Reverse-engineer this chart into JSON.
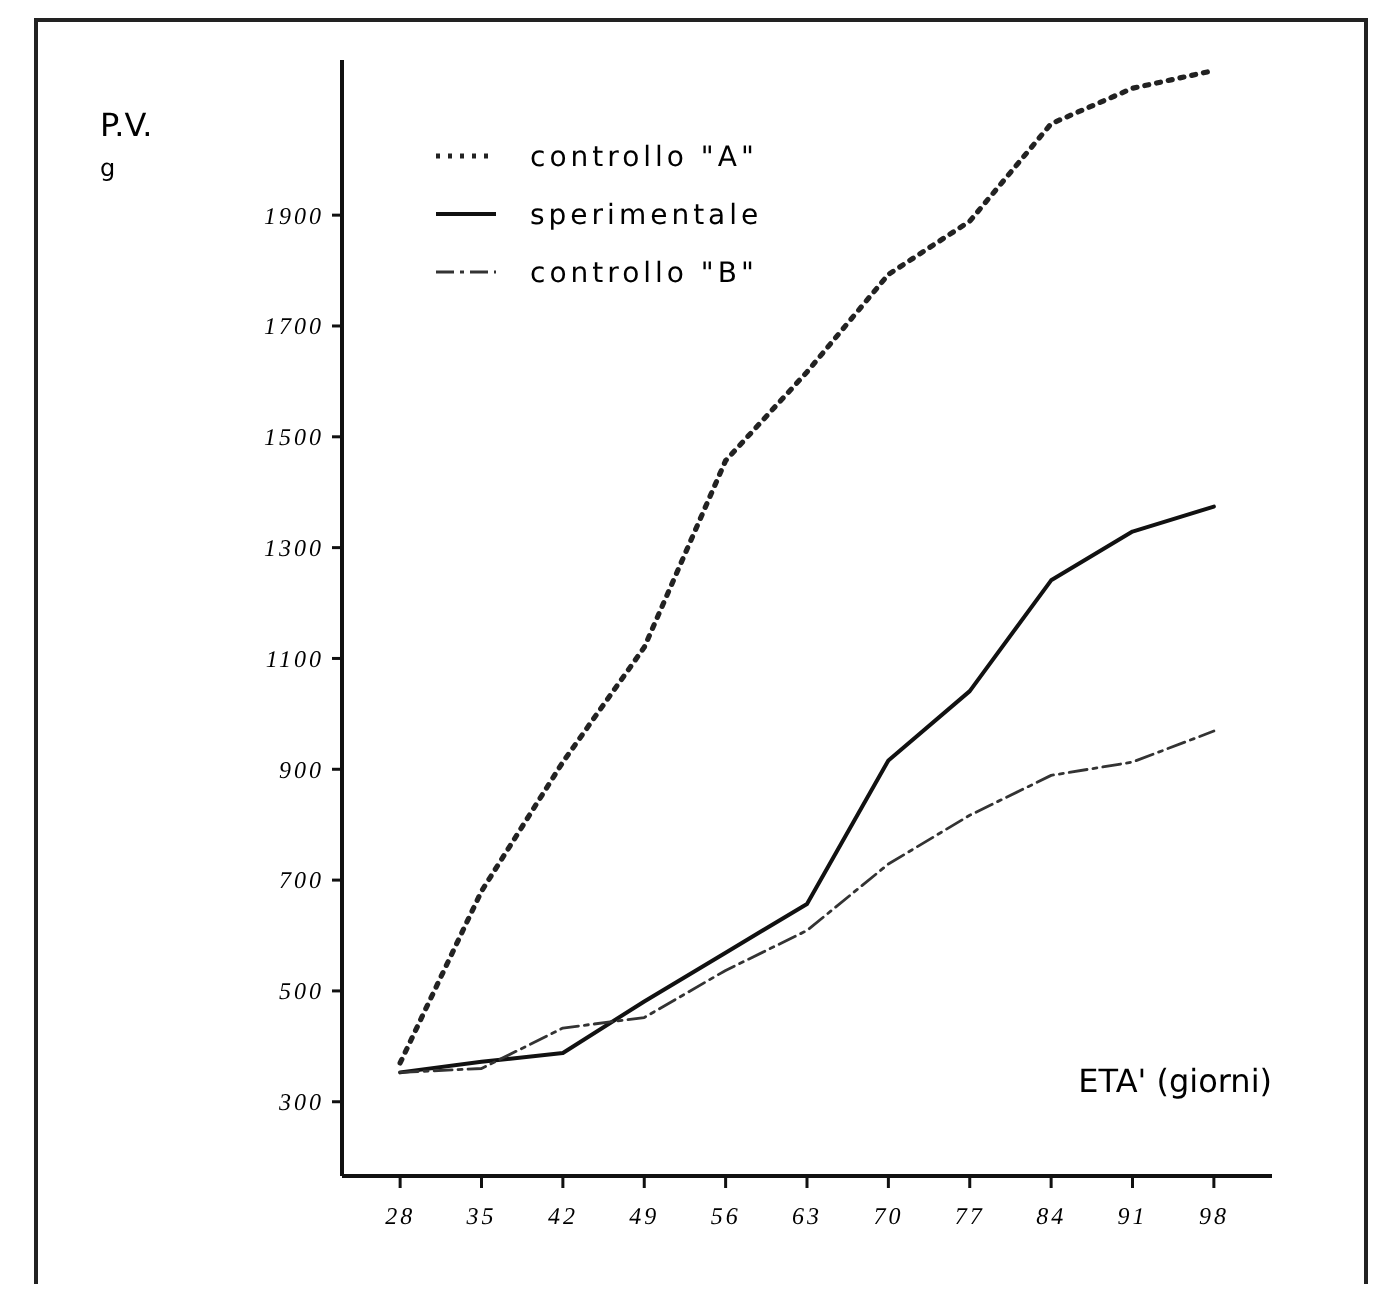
{
  "chart_data": {
    "type": "line",
    "ylabel": "P.V.\ng",
    "xlabel": "ETA' (giorni)",
    "x": [
      28,
      35,
      42,
      49,
      56,
      63,
      70,
      77,
      84,
      91,
      98
    ],
    "xlim": [
      23,
      103
    ],
    "xticks": [
      28,
      35,
      42,
      49,
      56,
      63,
      70,
      77,
      84,
      91,
      98
    ],
    "ylim": [
      166,
      2180
    ],
    "yticks": [
      300,
      500,
      700,
      900,
      1100,
      1300,
      1500,
      1700,
      1900
    ],
    "grid": false,
    "legend": "top left",
    "series": [
      {
        "name": "controllo \"A\"",
        "color": "#222222",
        "line_style": "dotted",
        "values": [
          370,
          680,
          913,
          1120,
          1457,
          1617,
          1793,
          1889,
          2065,
          2129,
          2161
        ]
      },
      {
        "name": "sperimentale",
        "color": "#111111",
        "line_style": "solid",
        "values": [
          353,
          372,
          388,
          481,
          569,
          657,
          916,
          1041,
          1241,
          1329,
          1374
        ]
      },
      {
        "name": "controllo \"B\"",
        "color": "#333333",
        "line_style": "dashed",
        "values": [
          353,
          360,
          433,
          452,
          537,
          609,
          729,
          817,
          889,
          913,
          969
        ]
      }
    ]
  }
}
